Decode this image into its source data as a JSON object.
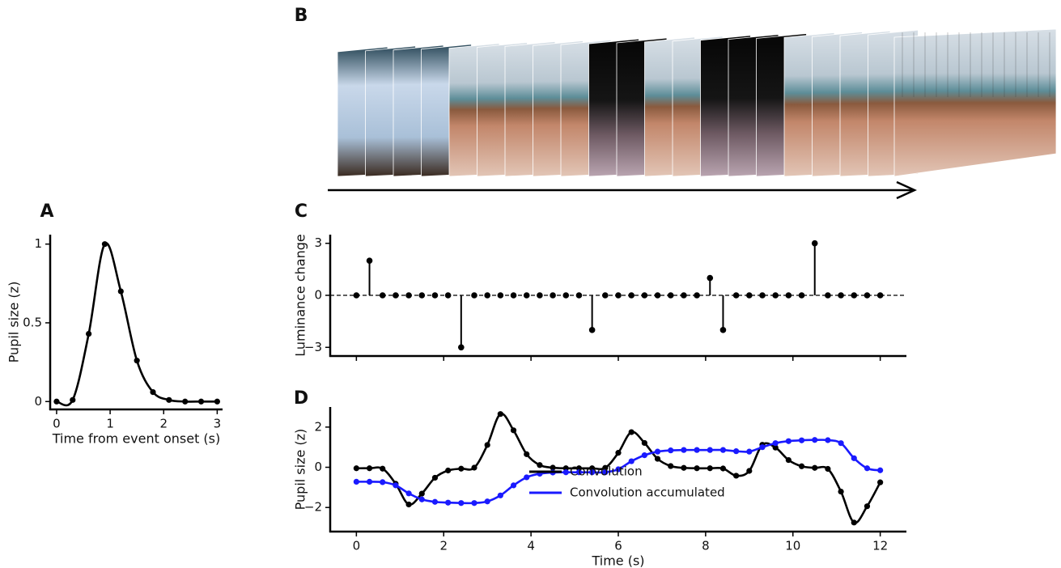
{
  "image_panel": {
    "label": "B"
  },
  "chart_data": [
    {
      "type": "line",
      "panel": "A",
      "xlabel": "Time from event onset (s)",
      "ylabel": "Pupil size (z)",
      "x": [
        0,
        0.3,
        0.6,
        0.9,
        1.2,
        1.5,
        1.8,
        2.1,
        2.4,
        2.7,
        3
      ],
      "values": [
        0,
        0.01,
        0.43,
        1,
        0.7,
        0.26,
        0.06,
        0.01,
        0,
        0,
        0
      ],
      "color": "#000000",
      "xlim": [
        -0.12,
        3.1
      ],
      "ylim": [
        -0.05,
        1.06
      ],
      "xticks": [
        0,
        1,
        2,
        3
      ],
      "yticks": [
        0,
        0.5,
        1
      ]
    },
    {
      "type": "stem",
      "panel": "C",
      "ylabel": "Luminance change",
      "x": [
        0,
        0.3,
        0.6,
        0.9,
        1.2,
        1.5,
        1.8,
        2.1,
        2.4,
        2.7,
        3,
        3.3,
        3.6,
        3.9,
        4.2,
        4.5,
        4.8,
        5.1,
        5.4,
        5.7,
        6,
        6.3,
        6.6,
        6.9,
        7.2,
        7.5,
        7.8,
        8.1,
        8.4,
        8.7,
        9,
        9.3,
        9.6,
        9.9,
        10.2,
        10.5,
        10.8,
        11.1,
        11.4,
        11.7,
        12
      ],
      "values": [
        0,
        2,
        0,
        0,
        0,
        0,
        0,
        0,
        -3,
        0,
        0,
        0,
        0,
        0,
        0,
        0,
        0,
        0,
        -2,
        0,
        0,
        0,
        0,
        0,
        0,
        0,
        0,
        1,
        -2,
        0,
        0,
        0,
        0,
        0,
        0,
        3,
        0,
        0,
        0,
        0,
        0
      ],
      "color": "#000000",
      "xlim": [
        -0.6,
        12.6
      ],
      "ylim": [
        -3.5,
        3.5
      ],
      "xticks": [
        0,
        2,
        4,
        6,
        8,
        10,
        12
      ],
      "xtick_labels": false,
      "yticks": [
        {
          "value": -3,
          "label": "−3"
        },
        0,
        3
      ]
    },
    {
      "type": "line",
      "panel": "D",
      "xlabel": "Time (s)",
      "ylabel": "Pupil size (z)",
      "x": [
        0,
        0.3,
        0.6,
        0.9,
        1.2,
        1.5,
        1.8,
        2.1,
        2.4,
        2.7,
        3,
        3.3,
        3.6,
        3.9,
        4.2,
        4.5,
        4.8,
        5.1,
        5.4,
        5.7,
        6,
        6.3,
        6.6,
        6.9,
        7.2,
        7.5,
        7.8,
        8.1,
        8.4,
        8.7,
        9,
        9.3,
        9.6,
        9.9,
        10.2,
        10.5,
        10.8,
        11.1,
        11.4,
        11.7,
        12
      ],
      "series": [
        {
          "name": "Convolution",
          "color": "#000000",
          "values": [
            -0.05,
            -0.05,
            -0.07,
            -0.82,
            -1.85,
            -1.31,
            -0.52,
            -0.16,
            -0.07,
            -0.02,
            1.11,
            2.65,
            1.84,
            0.65,
            0.11,
            -0.02,
            -0.05,
            -0.05,
            -0.05,
            -0.03,
            0.72,
            1.75,
            1.21,
            0.42,
            0.06,
            -0.03,
            -0.05,
            -0.05,
            -0.06,
            -0.42,
            -0.18,
            1.12,
            0.98,
            0.36,
            0.05,
            -0.03,
            -0.08,
            -1.21,
            -2.75,
            -1.94,
            -0.75
          ]
        },
        {
          "name": "Convolution accumulated",
          "color": "#1a1aff",
          "values": [
            -0.72,
            -0.72,
            -0.74,
            -0.9,
            -1.3,
            -1.6,
            -1.72,
            -1.76,
            -1.78,
            -1.78,
            -1.7,
            -1.4,
            -0.9,
            -0.5,
            -0.32,
            -0.26,
            -0.25,
            -0.25,
            -0.25,
            -0.25,
            -0.1,
            0.3,
            0.6,
            0.78,
            0.84,
            0.86,
            0.86,
            0.86,
            0.86,
            0.8,
            0.78,
            1.0,
            1.2,
            1.3,
            1.34,
            1.36,
            1.35,
            1.2,
            0.45,
            -0.05,
            -0.15
          ]
        }
      ],
      "xlim": [
        -0.6,
        12.6
      ],
      "ylim": [
        -3.2,
        3.0
      ],
      "xticks": [
        0,
        2,
        4,
        6,
        8,
        10,
        12
      ],
      "yticks": [
        {
          "value": -2,
          "label": "−2"
        },
        0,
        2
      ],
      "legend": "lower center"
    }
  ]
}
